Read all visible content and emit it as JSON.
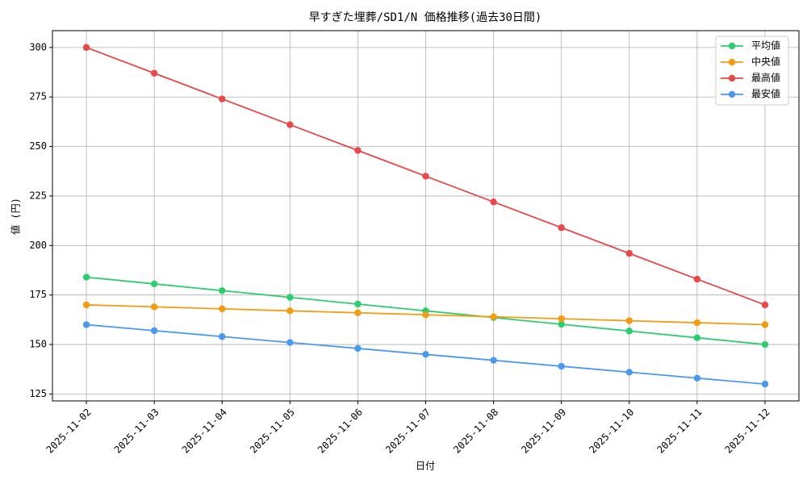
{
  "chart_data": {
    "type": "line",
    "title": "早すぎた埋葬/SD1/N 価格推移(過去30日間)",
    "x_label": "日付",
    "y_label": "値 (円)",
    "categories": [
      "2025-11-02",
      "2025-11-03",
      "2025-11-04",
      "2025-11-05",
      "2025-11-06",
      "2025-11-07",
      "2025-11-08",
      "2025-11-09",
      "2025-11-10",
      "2025-11-11",
      "2025-11-12"
    ],
    "series": [
      {
        "name": "平均値",
        "color": "#2ecc71",
        "values": [
          184,
          180.6,
          177.2,
          173.8,
          170.4,
          167,
          163.6,
          160.2,
          156.8,
          153.4,
          150
        ]
      },
      {
        "name": "中央値",
        "color": "#f39c12",
        "values": [
          170,
          169,
          168,
          167,
          166,
          165,
          164,
          163,
          162,
          161,
          160
        ]
      },
      {
        "name": "最高値",
        "color": "#e84848",
        "values": [
          300,
          287,
          274,
          261,
          248,
          235,
          222,
          209,
          196,
          183,
          170
        ]
      },
      {
        "name": "最安値",
        "color": "#4a98f0",
        "values": [
          160,
          157,
          154,
          151,
          148,
          145,
          142,
          139,
          136,
          133,
          130
        ]
      }
    ],
    "ylim": [
      121.5,
      308.5
    ],
    "yticks": [
      125,
      150,
      175,
      200,
      225,
      250,
      275,
      300
    ],
    "grid": true,
    "legend": "upper right"
  }
}
